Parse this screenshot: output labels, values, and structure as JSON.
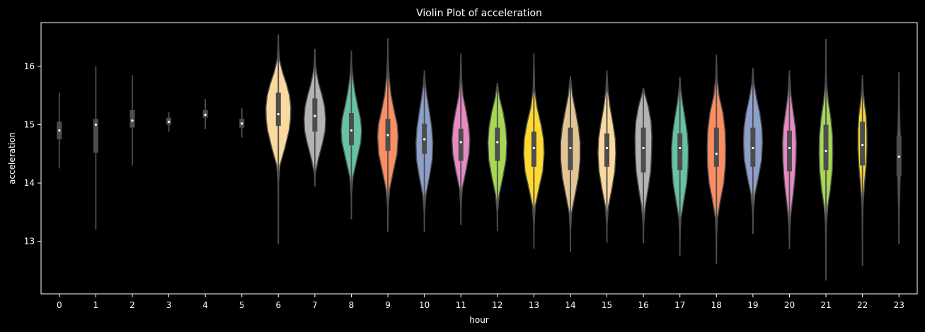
{
  "chart_data": {
    "type": "violin",
    "title": "Violin Plot of acceleration",
    "xlabel": "hour",
    "ylabel": "acceleration",
    "ylim": [
      12.1,
      16.75
    ],
    "yticks": [
      13,
      14,
      15,
      16
    ],
    "grid": false,
    "legend": "none",
    "colors": {
      "background": "#000000",
      "axes": "#ffffff",
      "box": "#4d4d4d",
      "median": "#ffffff",
      "violin_edge": "#4a4a4a",
      "palette": [
        "#fbd89e",
        "#b3b3b3",
        "#66c2a5",
        "#fc8d62",
        "#8da0cb",
        "#e78ac3",
        "#a6d854",
        "#ffd92f",
        "#e5c494"
      ]
    },
    "categories": [
      "0",
      "1",
      "2",
      "3",
      "4",
      "5",
      "6",
      "7",
      "8",
      "9",
      "10",
      "11",
      "12",
      "13",
      "14",
      "15",
      "16",
      "17",
      "18",
      "19",
      "20",
      "21",
      "22",
      "23"
    ],
    "violins": [
      {
        "hour": "0",
        "min": 14.25,
        "q1": 14.75,
        "median": 14.9,
        "q3": 15.05,
        "max": 15.55,
        "width": 0.0,
        "shape": []
      },
      {
        "hour": "1",
        "min": 13.2,
        "q1": 14.52,
        "median": 15.0,
        "q3": 15.1,
        "max": 16.0,
        "width": 0.0,
        "shape": []
      },
      {
        "hour": "2",
        "min": 14.3,
        "q1": 14.95,
        "median": 15.07,
        "q3": 15.25,
        "max": 15.85,
        "width": 0.0,
        "shape": []
      },
      {
        "hour": "3",
        "min": 14.88,
        "q1": 15.0,
        "median": 15.05,
        "q3": 15.12,
        "max": 15.22,
        "width": 0.0,
        "shape": []
      },
      {
        "hour": "4",
        "min": 14.92,
        "q1": 15.12,
        "median": 15.17,
        "q3": 15.25,
        "max": 15.44,
        "width": 0.0,
        "shape": []
      },
      {
        "hour": "5",
        "min": 14.78,
        "q1": 14.95,
        "median": 15.02,
        "q3": 15.1,
        "max": 15.28,
        "width": 0.0,
        "shape": []
      },
      {
        "hour": "6",
        "min": 12.95,
        "q1": 14.98,
        "median": 15.18,
        "q3": 15.55,
        "max": 16.55,
        "width": 0.72,
        "shape": [
          [
            12.95,
            0.0
          ],
          [
            13.5,
            0.005
          ],
          [
            14.0,
            0.02
          ],
          [
            14.3,
            0.12
          ],
          [
            14.6,
            0.5
          ],
          [
            14.9,
            0.82
          ],
          [
            15.1,
            0.93
          ],
          [
            15.3,
            0.95
          ],
          [
            15.5,
            0.85
          ],
          [
            15.7,
            0.62
          ],
          [
            15.9,
            0.32
          ],
          [
            16.1,
            0.1
          ],
          [
            16.3,
            0.03
          ],
          [
            16.55,
            0.0
          ]
        ]
      },
      {
        "hour": "7",
        "min": 13.95,
        "q1": 14.88,
        "median": 15.15,
        "q3": 15.45,
        "max": 16.3,
        "width": 0.72,
        "shape": [
          [
            13.95,
            0.0
          ],
          [
            14.15,
            0.03
          ],
          [
            14.4,
            0.25
          ],
          [
            14.7,
            0.6
          ],
          [
            14.9,
            0.78
          ],
          [
            15.1,
            0.82
          ],
          [
            15.3,
            0.75
          ],
          [
            15.5,
            0.55
          ],
          [
            15.7,
            0.3
          ],
          [
            15.9,
            0.12
          ],
          [
            16.05,
            0.05
          ],
          [
            16.3,
            0.0
          ]
        ]
      },
      {
        "hour": "8",
        "min": 13.38,
        "q1": 14.65,
        "median": 14.9,
        "q3": 15.2,
        "max": 16.27,
        "width": 0.72,
        "shape": [
          [
            13.38,
            0.0
          ],
          [
            13.8,
            0.02
          ],
          [
            14.1,
            0.12
          ],
          [
            14.4,
            0.42
          ],
          [
            14.7,
            0.72
          ],
          [
            14.9,
            0.78
          ],
          [
            15.1,
            0.7
          ],
          [
            15.3,
            0.5
          ],
          [
            15.55,
            0.28
          ],
          [
            15.8,
            0.12
          ],
          [
            16.0,
            0.04
          ],
          [
            16.27,
            0.0
          ]
        ]
      },
      {
        "hour": "9",
        "min": 13.17,
        "q1": 14.55,
        "median": 14.82,
        "q3": 15.1,
        "max": 16.48,
        "width": 0.72,
        "shape": [
          [
            13.17,
            0.0
          ],
          [
            13.6,
            0.03
          ],
          [
            13.9,
            0.14
          ],
          [
            14.2,
            0.42
          ],
          [
            14.5,
            0.7
          ],
          [
            14.8,
            0.78
          ],
          [
            15.0,
            0.72
          ],
          [
            15.2,
            0.52
          ],
          [
            15.5,
            0.25
          ],
          [
            15.8,
            0.1
          ],
          [
            16.1,
            0.03
          ],
          [
            16.48,
            0.0
          ]
        ]
      },
      {
        "hour": "10",
        "min": 13.17,
        "q1": 14.5,
        "median": 14.75,
        "q3": 15.02,
        "max": 15.93,
        "width": 0.72,
        "shape": [
          [
            13.17,
            0.0
          ],
          [
            13.5,
            0.02
          ],
          [
            13.8,
            0.12
          ],
          [
            14.1,
            0.38
          ],
          [
            14.4,
            0.6
          ],
          [
            14.7,
            0.64
          ],
          [
            14.95,
            0.56
          ],
          [
            15.2,
            0.4
          ],
          [
            15.45,
            0.22
          ],
          [
            15.7,
            0.07
          ],
          [
            15.93,
            0.0
          ]
        ]
      },
      {
        "hour": "11",
        "min": 13.28,
        "q1": 14.38,
        "median": 14.7,
        "q3": 14.93,
        "max": 16.22,
        "width": 0.72,
        "shape": [
          [
            13.28,
            0.0
          ],
          [
            13.6,
            0.02
          ],
          [
            13.9,
            0.1
          ],
          [
            14.2,
            0.38
          ],
          [
            14.5,
            0.62
          ],
          [
            14.75,
            0.68
          ],
          [
            15.0,
            0.58
          ],
          [
            15.25,
            0.38
          ],
          [
            15.5,
            0.16
          ],
          [
            15.8,
            0.05
          ],
          [
            16.22,
            0.0
          ]
        ]
      },
      {
        "hour": "12",
        "min": 13.18,
        "q1": 14.38,
        "median": 14.7,
        "q3": 14.95,
        "max": 15.72,
        "width": 0.72,
        "shape": [
          [
            13.18,
            0.0
          ],
          [
            13.5,
            0.02
          ],
          [
            13.8,
            0.14
          ],
          [
            14.1,
            0.42
          ],
          [
            14.4,
            0.66
          ],
          [
            14.7,
            0.72
          ],
          [
            14.95,
            0.64
          ],
          [
            15.2,
            0.45
          ],
          [
            15.45,
            0.18
          ],
          [
            15.72,
            0.0
          ]
        ]
      },
      {
        "hour": "13",
        "min": 12.88,
        "q1": 14.28,
        "median": 14.6,
        "q3": 14.88,
        "max": 16.22,
        "width": 0.72,
        "shape": [
          [
            12.88,
            0.0
          ],
          [
            13.3,
            0.02
          ],
          [
            13.6,
            0.1
          ],
          [
            13.9,
            0.38
          ],
          [
            14.2,
            0.68
          ],
          [
            14.5,
            0.78
          ],
          [
            14.75,
            0.74
          ],
          [
            15.0,
            0.55
          ],
          [
            15.3,
            0.24
          ],
          [
            15.6,
            0.06
          ],
          [
            16.0,
            0.02
          ],
          [
            16.22,
            0.0
          ]
        ]
      },
      {
        "hour": "14",
        "min": 12.82,
        "q1": 14.22,
        "median": 14.6,
        "q3": 14.95,
        "max": 15.83,
        "width": 0.72,
        "shape": [
          [
            12.82,
            0.0
          ],
          [
            13.2,
            0.02
          ],
          [
            13.5,
            0.1
          ],
          [
            13.8,
            0.36
          ],
          [
            14.1,
            0.62
          ],
          [
            14.4,
            0.74
          ],
          [
            14.7,
            0.74
          ],
          [
            14.95,
            0.62
          ],
          [
            15.2,
            0.42
          ],
          [
            15.5,
            0.16
          ],
          [
            15.83,
            0.0
          ]
        ]
      },
      {
        "hour": "15",
        "min": 12.98,
        "q1": 14.28,
        "median": 14.6,
        "q3": 14.85,
        "max": 15.93,
        "width": 0.72,
        "shape": [
          [
            12.98,
            0.0
          ],
          [
            13.3,
            0.02
          ],
          [
            13.6,
            0.12
          ],
          [
            13.9,
            0.38
          ],
          [
            14.2,
            0.6
          ],
          [
            14.5,
            0.68
          ],
          [
            14.75,
            0.64
          ],
          [
            15.0,
            0.48
          ],
          [
            15.3,
            0.24
          ],
          [
            15.6,
            0.08
          ],
          [
            15.93,
            0.0
          ]
        ]
      },
      {
        "hour": "16",
        "min": 12.97,
        "q1": 14.18,
        "median": 14.6,
        "q3": 14.95,
        "max": 15.63,
        "width": 0.72,
        "shape": [
          [
            12.97,
            0.0
          ],
          [
            13.3,
            0.03
          ],
          [
            13.6,
            0.14
          ],
          [
            13.9,
            0.36
          ],
          [
            14.2,
            0.55
          ],
          [
            14.5,
            0.62
          ],
          [
            14.8,
            0.64
          ],
          [
            15.05,
            0.58
          ],
          [
            15.3,
            0.38
          ],
          [
            15.5,
            0.14
          ],
          [
            15.63,
            0.0
          ]
        ]
      },
      {
        "hour": "17",
        "min": 12.75,
        "q1": 14.22,
        "median": 14.6,
        "q3": 14.85,
        "max": 15.82,
        "width": 0.72,
        "shape": [
          [
            12.75,
            0.0
          ],
          [
            13.1,
            0.02
          ],
          [
            13.4,
            0.08
          ],
          [
            13.7,
            0.3
          ],
          [
            14.0,
            0.52
          ],
          [
            14.3,
            0.62
          ],
          [
            14.6,
            0.64
          ],
          [
            14.85,
            0.56
          ],
          [
            15.1,
            0.4
          ],
          [
            15.4,
            0.18
          ],
          [
            15.65,
            0.05
          ],
          [
            15.82,
            0.0
          ]
        ]
      },
      {
        "hour": "18",
        "min": 12.62,
        "q1": 14.28,
        "median": 14.5,
        "q3": 14.95,
        "max": 16.2,
        "width": 0.72,
        "shape": [
          [
            12.62,
            0.0
          ],
          [
            13.1,
            0.02
          ],
          [
            13.4,
            0.08
          ],
          [
            13.7,
            0.3
          ],
          [
            14.0,
            0.56
          ],
          [
            14.3,
            0.68
          ],
          [
            14.6,
            0.7
          ],
          [
            14.9,
            0.66
          ],
          [
            15.2,
            0.5
          ],
          [
            15.5,
            0.2
          ],
          [
            15.8,
            0.05
          ],
          [
            16.2,
            0.0
          ]
        ]
      },
      {
        "hour": "19",
        "min": 13.13,
        "q1": 14.28,
        "median": 14.6,
        "q3": 14.95,
        "max": 15.97,
        "width": 0.72,
        "shape": [
          [
            13.13,
            0.0
          ],
          [
            13.5,
            0.03
          ],
          [
            13.8,
            0.14
          ],
          [
            14.1,
            0.42
          ],
          [
            14.4,
            0.66
          ],
          [
            14.7,
            0.72
          ],
          [
            14.95,
            0.68
          ],
          [
            15.2,
            0.52
          ],
          [
            15.45,
            0.28
          ],
          [
            15.7,
            0.08
          ],
          [
            15.97,
            0.0
          ]
        ]
      },
      {
        "hour": "20",
        "min": 12.87,
        "q1": 14.2,
        "median": 14.6,
        "q3": 14.9,
        "max": 15.93,
        "width": 0.72,
        "shape": [
          [
            12.87,
            0.0
          ],
          [
            13.2,
            0.03
          ],
          [
            13.5,
            0.12
          ],
          [
            13.8,
            0.28
          ],
          [
            14.1,
            0.42
          ],
          [
            14.4,
            0.5
          ],
          [
            14.7,
            0.52
          ],
          [
            14.95,
            0.46
          ],
          [
            15.2,
            0.3
          ],
          [
            15.5,
            0.12
          ],
          [
            15.93,
            0.0
          ]
        ]
      },
      {
        "hour": "21",
        "min": 12.33,
        "q1": 14.22,
        "median": 14.55,
        "q3": 15.0,
        "max": 16.47,
        "width": 0.72,
        "shape": [
          [
            12.33,
            0.0
          ],
          [
            12.9,
            0.01
          ],
          [
            13.3,
            0.04
          ],
          [
            13.6,
            0.14
          ],
          [
            13.9,
            0.34
          ],
          [
            14.2,
            0.48
          ],
          [
            14.5,
            0.52
          ],
          [
            14.8,
            0.5
          ],
          [
            15.1,
            0.38
          ],
          [
            15.4,
            0.18
          ],
          [
            15.7,
            0.05
          ],
          [
            16.0,
            0.02
          ],
          [
            16.47,
            0.0
          ]
        ]
      },
      {
        "hour": "22",
        "min": 12.58,
        "q1": 14.3,
        "median": 14.65,
        "q3": 15.05,
        "max": 15.85,
        "width": 0.72,
        "shape": [
          [
            12.58,
            0.0
          ],
          [
            13.2,
            0.01
          ],
          [
            13.6,
            0.04
          ],
          [
            14.0,
            0.16
          ],
          [
            14.3,
            0.28
          ],
          [
            14.6,
            0.34
          ],
          [
            14.9,
            0.34
          ],
          [
            15.15,
            0.28
          ],
          [
            15.4,
            0.14
          ],
          [
            15.6,
            0.05
          ],
          [
            15.85,
            0.0
          ]
        ]
      },
      {
        "hour": "23",
        "min": 12.95,
        "q1": 14.12,
        "median": 14.45,
        "q3": 14.8,
        "max": 15.9,
        "width": 0.72,
        "shape": [
          [
            12.95,
            0.0
          ],
          [
            13.3,
            0.01
          ],
          [
            13.6,
            0.03
          ],
          [
            13.9,
            0.07
          ],
          [
            14.2,
            0.1
          ],
          [
            14.5,
            0.12
          ],
          [
            14.8,
            0.1
          ],
          [
            15.1,
            0.06
          ],
          [
            15.4,
            0.03
          ],
          [
            15.9,
            0.0
          ]
        ]
      }
    ]
  }
}
